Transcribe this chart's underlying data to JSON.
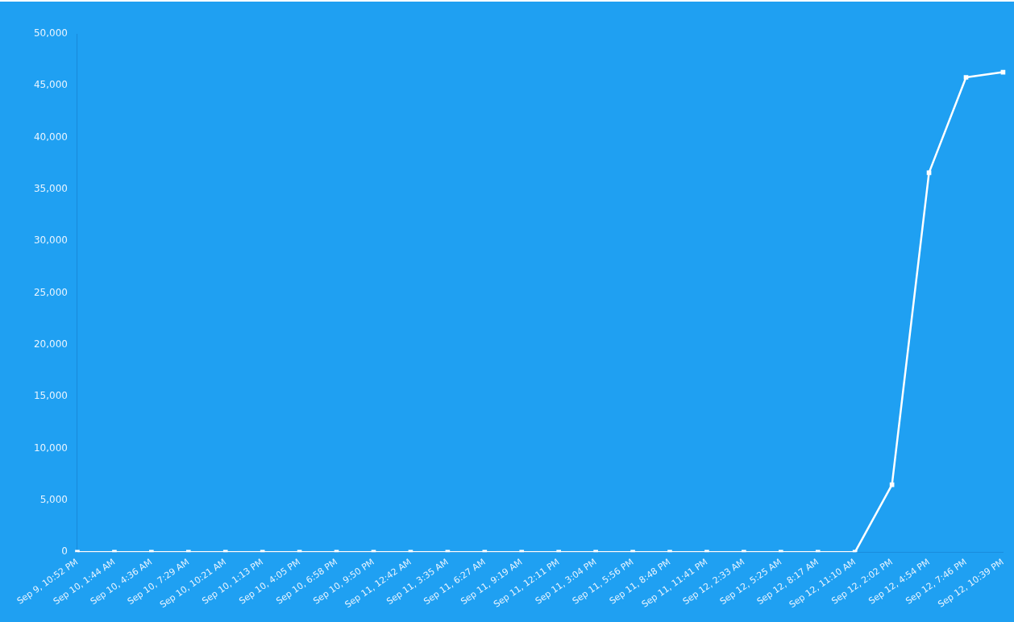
{
  "chart_data": {
    "type": "line",
    "categories": [
      "Sep 9, 10:52 PM",
      "Sep 10, 1:44 AM",
      "Sep 10, 4:36 AM",
      "Sep 10, 7:29 AM",
      "Sep 10, 10:21 AM",
      "Sep 10, 1:13 PM",
      "Sep 10, 4:05 PM",
      "Sep 10, 6:58 PM",
      "Sep 10, 9:50 PM",
      "Sep 11, 12:42 AM",
      "Sep 11, 3:35 AM",
      "Sep 11, 6:27 AM",
      "Sep 11, 9:19 AM",
      "Sep 11, 12:11 PM",
      "Sep 11, 3:04 PM",
      "Sep 11, 5:56 PM",
      "Sep 11, 8:48 PM",
      "Sep 11, 11:41 PM",
      "Sep 12, 2:33 AM",
      "Sep 12, 5:25 AM",
      "Sep 12, 8:17 AM",
      "Sep 12, 11:10 AM",
      "Sep 12, 2:02 PM",
      "Sep 12, 4:54 PM",
      "Sep 12, 7:46 PM",
      "Sep 12, 10:39 PM"
    ],
    "series": [
      {
        "color": "#ffffff",
        "values": [
          0,
          0,
          0,
          0,
          0,
          0,
          0,
          0,
          0,
          0,
          0,
          0,
          0,
          0,
          0,
          0,
          0,
          0,
          0,
          0,
          0,
          0,
          6500,
          36600,
          45800,
          46300
        ]
      }
    ],
    "ylim": [
      0,
      50000
    ],
    "yticks": [
      {
        "value": 0,
        "label": "0"
      },
      {
        "value": 5000,
        "label": "5,000"
      },
      {
        "value": 10000,
        "label": "10,000"
      },
      {
        "value": 15000,
        "label": "15,000"
      },
      {
        "value": 20000,
        "label": "20,000"
      },
      {
        "value": 25000,
        "label": "25,000"
      },
      {
        "value": 30000,
        "label": "30,000"
      },
      {
        "value": 35000,
        "label": "35,000"
      },
      {
        "value": 40000,
        "label": "40,000"
      },
      {
        "value": 45000,
        "label": "45,000"
      },
      {
        "value": 50000,
        "label": "50,000"
      }
    ],
    "grid": false,
    "legend": false,
    "marker": "square",
    "line_style": "solid"
  }
}
